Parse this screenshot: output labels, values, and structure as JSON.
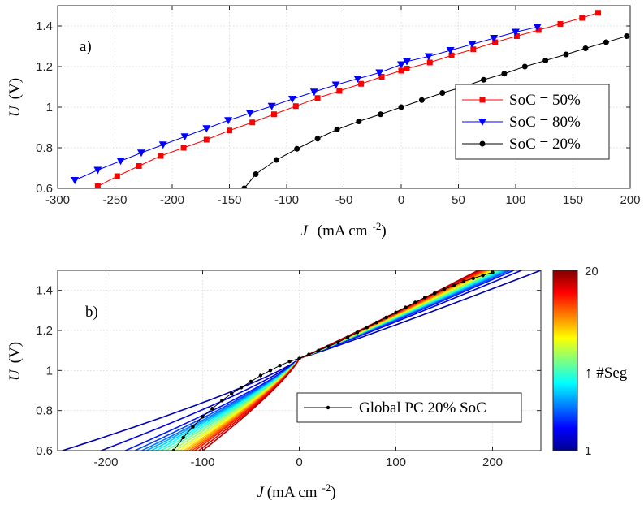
{
  "chart_data": [
    {
      "type": "line",
      "panel_label": "a)",
      "xlabel": "J",
      "xlabel_unit": "(mA cm",
      "xlabel_exp": "-2",
      "xlabel_close": ")",
      "ylabel": "U",
      "ylabel_unit": "(V)",
      "xlim": [
        -300,
        200
      ],
      "ylim": [
        0.6,
        1.5
      ],
      "xticks": [
        -300,
        -250,
        -200,
        -150,
        -100,
        -50,
        0,
        50,
        100,
        150,
        200
      ],
      "yticks": [
        0.6,
        0.8,
        1,
        1.2,
        1.4
      ],
      "grid": true,
      "legend_position": "right",
      "series": [
        {
          "name": "SoC = 50%",
          "color": "#ff0000",
          "marker": "square",
          "x": [
            -265,
            -248,
            -229,
            -210,
            -190,
            -170,
            -150,
            -130,
            -111,
            -92,
            -73,
            -54,
            -35,
            -17,
            0,
            5,
            25,
            44,
            63,
            82,
            101,
            120,
            139,
            158,
            172
          ],
          "y": [
            0.61,
            0.66,
            0.71,
            0.76,
            0.8,
            0.84,
            0.885,
            0.925,
            0.965,
            1.005,
            1.045,
            1.08,
            1.115,
            1.15,
            1.18,
            1.19,
            1.22,
            1.255,
            1.285,
            1.32,
            1.35,
            1.38,
            1.41,
            1.44,
            1.465
          ]
        },
        {
          "name": "SoC = 80%",
          "color": "#0000ff",
          "marker": "triangle-down",
          "x": [
            -285,
            -265,
            -245,
            -227,
            -208,
            -189,
            -170,
            -151,
            -132,
            -113,
            -95,
            -76,
            -57,
            -38,
            -19,
            0,
            5,
            24,
            43,
            62,
            81,
            100,
            119
          ],
          "y": [
            0.64,
            0.69,
            0.735,
            0.775,
            0.815,
            0.855,
            0.895,
            0.935,
            0.97,
            1.005,
            1.04,
            1.075,
            1.11,
            1.14,
            1.17,
            1.21,
            1.225,
            1.25,
            1.28,
            1.31,
            1.34,
            1.37,
            1.395
          ]
        },
        {
          "name": "SoC = 20%",
          "color": "#000000",
          "marker": "circle",
          "x": [
            -137,
            -127,
            -109,
            -91,
            -73,
            -56,
            -37,
            -18,
            0,
            18,
            36,
            54,
            72,
            90,
            108,
            126,
            144,
            161,
            179,
            197
          ],
          "y": [
            0.6,
            0.67,
            0.74,
            0.795,
            0.845,
            0.89,
            0.93,
            0.965,
            1.0,
            1.035,
            1.07,
            1.1,
            1.135,
            1.165,
            1.2,
            1.23,
            1.26,
            1.29,
            1.32,
            1.35
          ]
        }
      ]
    },
    {
      "type": "line",
      "panel_label": "b)",
      "xlabel": "J",
      "xlabel_unit": "(mA cm",
      "xlabel_exp": "-2",
      "xlabel_close": ")",
      "ylabel": "U",
      "ylabel_unit": "(V)",
      "xlim": [
        -250,
        250
      ],
      "ylim": [
        0.6,
        1.5
      ],
      "xticks": [
        -200,
        -100,
        0,
        100,
        200
      ],
      "yticks": [
        0.6,
        0.8,
        1,
        1.2,
        1.4
      ],
      "grid": true,
      "legend_position": "lower-right",
      "colorbar": {
        "min": 1,
        "max": 20,
        "label": "↑ #Seg",
        "colormap": "jet"
      },
      "reference_series": {
        "name": "Global PC 20% SoC",
        "color": "#000000",
        "marker": "dot",
        "x": [
          -130,
          -120,
          -110,
          -100,
          -90,
          -80,
          -70,
          -60,
          -50,
          -40,
          -30,
          -20,
          -10,
          0,
          10,
          20,
          30,
          40,
          50,
          60,
          70,
          80,
          90,
          100,
          110,
          120,
          130,
          140,
          150,
          160,
          170,
          180,
          190,
          200
        ],
        "y": [
          0.6,
          0.665,
          0.72,
          0.77,
          0.81,
          0.85,
          0.885,
          0.915,
          0.945,
          0.975,
          1.0,
          1.025,
          1.045,
          1.06,
          1.08,
          1.1,
          1.12,
          1.14,
          1.165,
          1.19,
          1.215,
          1.24,
          1.265,
          1.29,
          1.315,
          1.34,
          1.365,
          1.385,
          1.405,
          1.425,
          1.445,
          1.46,
          1.475,
          1.49
        ]
      },
      "segments": [
        {
          "seg": 1,
          "j_neg": -245,
          "j_pos": 250
        },
        {
          "seg": 2,
          "j_neg": -205,
          "j_pos": 230
        },
        {
          "seg": 3,
          "j_neg": -180,
          "j_pos": 222
        },
        {
          "seg": 4,
          "j_neg": -170,
          "j_pos": 218
        },
        {
          "seg": 5,
          "j_neg": -163,
          "j_pos": 215
        },
        {
          "seg": 6,
          "j_neg": -158,
          "j_pos": 213
        },
        {
          "seg": 7,
          "j_neg": -153,
          "j_pos": 211
        },
        {
          "seg": 8,
          "j_neg": -148,
          "j_pos": 209
        },
        {
          "seg": 9,
          "j_neg": -143,
          "j_pos": 207
        },
        {
          "seg": 10,
          "j_neg": -138,
          "j_pos": 205
        },
        {
          "seg": 11,
          "j_neg": -133,
          "j_pos": 203
        },
        {
          "seg": 12,
          "j_neg": -128,
          "j_pos": 201
        },
        {
          "seg": 13,
          "j_neg": -124,
          "j_pos": 199
        },
        {
          "seg": 14,
          "j_neg": -120,
          "j_pos": 197
        },
        {
          "seg": 15,
          "j_neg": -117,
          "j_pos": 195
        },
        {
          "seg": 16,
          "j_neg": -114,
          "j_pos": 193
        },
        {
          "seg": 17,
          "j_neg": -111,
          "j_pos": 191
        },
        {
          "seg": 18,
          "j_neg": -108,
          "j_pos": 189
        },
        {
          "seg": 19,
          "j_neg": -104,
          "j_pos": 187
        },
        {
          "seg": 20,
          "j_neg": -100,
          "j_pos": 185
        }
      ]
    }
  ]
}
